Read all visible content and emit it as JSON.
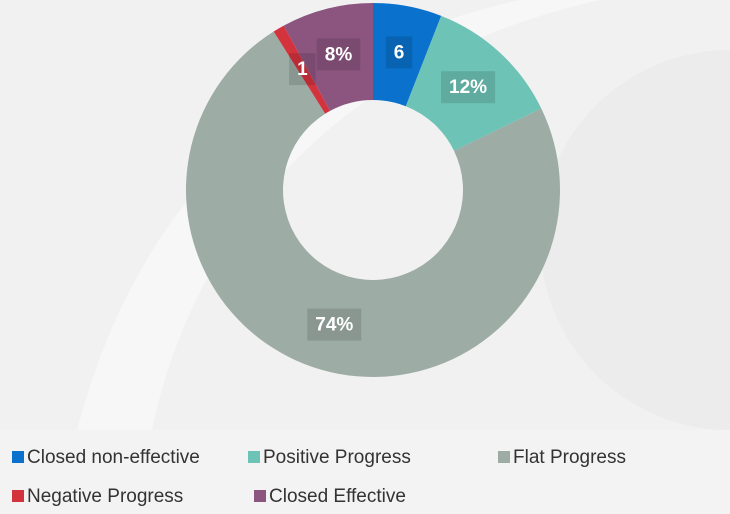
{
  "chart_data": {
    "type": "donut",
    "categories": [
      "Closed non-effective",
      "Positive Progress",
      "Flat Progress",
      "Negative Progress",
      "Closed Effective"
    ],
    "values": [
      6,
      12,
      74,
      1,
      8
    ],
    "value_labels": [
      "6",
      "12%",
      "74%",
      "1",
      "8%"
    ],
    "colors": [
      "#0a72cc",
      "#6dc3b5",
      "#9eaca6",
      "#d3333d",
      "#8b5580"
    ],
    "legend": "bottom"
  }
}
